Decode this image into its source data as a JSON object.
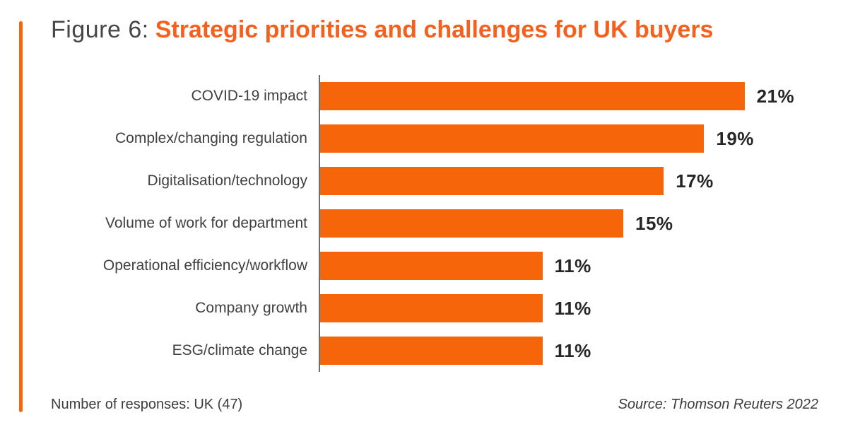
{
  "title": {
    "prefix": "Figure 6:",
    "main": "Strategic priorities and challenges for UK buyers"
  },
  "colors": {
    "accent_orange": "#F7650A",
    "title_orange": "#F4611E",
    "axis_gray": "#6D6E71",
    "label_gray": "#404040",
    "value_dark": "#262626"
  },
  "chart_data": {
    "type": "bar",
    "orientation": "horizontal",
    "title": "Strategic priorities and challenges for UK buyers",
    "categories": [
      "COVID-19 impact",
      "Complex/changing regulation",
      "Digitalisation/technology",
      "Volume of work for department",
      "Operational efficiency/workflow",
      "Company growth",
      "ESG/climate change"
    ],
    "values": [
      21,
      19,
      17,
      15,
      11,
      11,
      11
    ],
    "value_labels": [
      "21%",
      "19%",
      "17%",
      "15%",
      "11%",
      "11%",
      "11%"
    ],
    "unit": "%",
    "xlim": [
      0,
      21
    ],
    "grid": false,
    "legend": false,
    "bar_color": "#F7650A",
    "axis_color": "#6D6E71"
  },
  "footer": {
    "note": "Number of responses: UK (47)",
    "source": "Source: Thomson Reuters 2022"
  }
}
